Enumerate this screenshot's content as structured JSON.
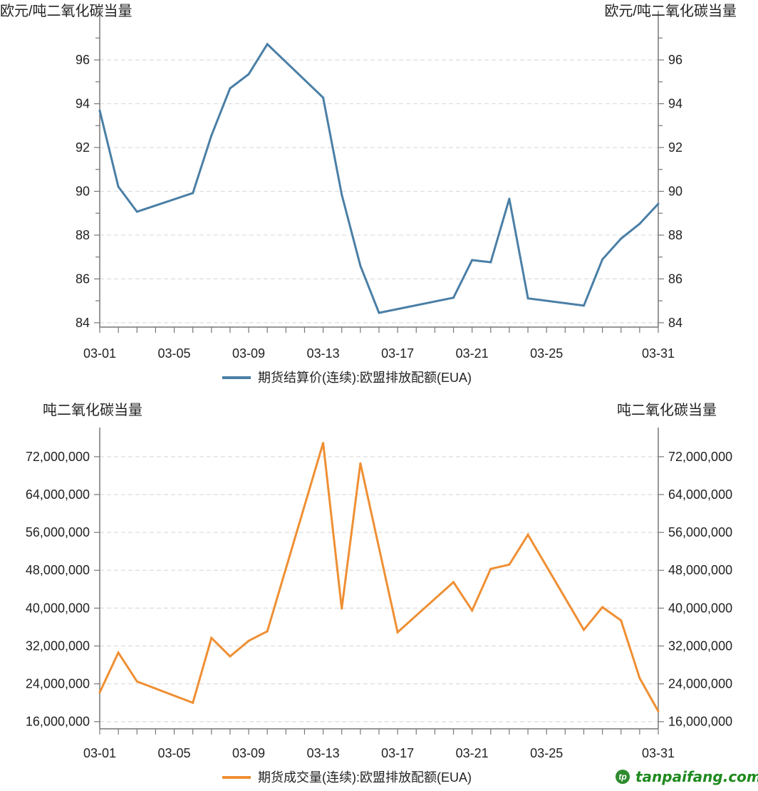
{
  "chart_data": [
    {
      "type": "line",
      "title": "",
      "ylabel_left": "欧元/吨二氧化碳当量",
      "ylabel_right": "欧元/吨二氧化碳当量",
      "ylim": [
        83.8,
        97.5
      ],
      "yticks": [
        84,
        86,
        88,
        90,
        92,
        94,
        96
      ],
      "ytick_labels": [
        "84",
        "86",
        "88",
        "90",
        "92",
        "94",
        "96"
      ],
      "xlim_days": [
        1,
        31
      ],
      "xtick_labels": [
        {
          "day": 1,
          "label": "03-01"
        },
        {
          "day": 5,
          "label": "03-05"
        },
        {
          "day": 9,
          "label": "03-09"
        },
        {
          "day": 13,
          "label": "03-13"
        },
        {
          "day": 17,
          "label": "03-17"
        },
        {
          "day": 21,
          "label": "03-21"
        },
        {
          "day": 25,
          "label": "03-25"
        },
        {
          "day": 31,
          "label": "03-31"
        }
      ],
      "grid": true,
      "legend_placement": "bottom-center",
      "series": [
        {
          "name": "期货结算价(连续):欧盟排放配额(EUA)",
          "color": "#4a7fa6",
          "x": [
            1,
            2,
            3,
            6,
            7,
            8,
            9,
            10,
            13,
            14,
            15,
            16,
            20,
            21,
            22,
            23,
            24,
            27,
            28,
            29,
            30,
            31
          ],
          "values": [
            93.69,
            90.21,
            89.07,
            89.92,
            92.55,
            94.7,
            95.35,
            96.72,
            94.28,
            89.85,
            86.6,
            84.45,
            85.14,
            86.86,
            86.76,
            89.66,
            85.11,
            84.78,
            86.89,
            87.84,
            88.52,
            89.43
          ]
        }
      ]
    },
    {
      "type": "line",
      "title": "",
      "ylabel_left": "吨二氧化碳当量",
      "ylabel_right": "吨二氧化碳当量",
      "ylim": [
        14500000,
        76500000
      ],
      "yticks": [
        16000000,
        24000000,
        32000000,
        40000000,
        48000000,
        56000000,
        64000000,
        72000000
      ],
      "ytick_labels": [
        "16,000,000",
        "24,000,000",
        "32,000,000",
        "40,000,000",
        "48,000,000",
        "56,000,000",
        "64,000,000",
        "72,000,000"
      ],
      "xlim_days": [
        1,
        31
      ],
      "xtick_labels": [
        {
          "day": 1,
          "label": "03-01"
        },
        {
          "day": 5,
          "label": "03-05"
        },
        {
          "day": 9,
          "label": "03-09"
        },
        {
          "day": 13,
          "label": "03-13"
        },
        {
          "day": 17,
          "label": "03-17"
        },
        {
          "day": 21,
          "label": "03-21"
        },
        {
          "day": 25,
          "label": "03-25"
        },
        {
          "day": 31,
          "label": "03-31"
        }
      ],
      "grid": true,
      "legend_placement": "bottom-center",
      "series": [
        {
          "name": "期货成交量(连续):欧盟排放配额(EUA)",
          "color": "#ef8f33",
          "x": [
            1,
            2,
            3,
            6,
            7,
            8,
            9,
            10,
            13,
            14,
            15,
            17,
            20,
            21,
            22,
            23,
            24,
            27,
            28,
            29,
            30,
            31
          ],
          "values": [
            22200000,
            30600000,
            24500000,
            20000000,
            33700000,
            29800000,
            33100000,
            35100000,
            74900000,
            39900000,
            70600000,
            34900000,
            45500000,
            39500000,
            48300000,
            49200000,
            55500000,
            35400000,
            40200000,
            37400000,
            25200000,
            18200000
          ]
        }
      ]
    }
  ],
  "watermark": {
    "text": "tanpaifang.com"
  }
}
